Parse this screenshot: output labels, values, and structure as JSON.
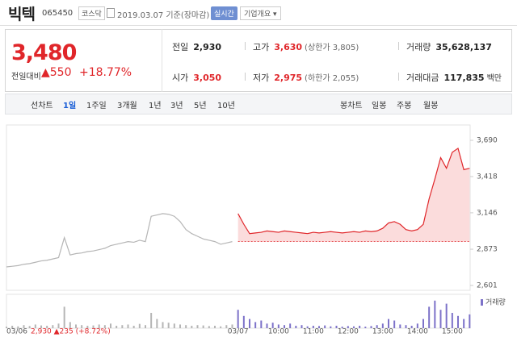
{
  "header": {
    "name": "빅텍",
    "code": "065450",
    "market": "코스닥",
    "date": "2019.03.07 기준(장마감)",
    "realtime": "실시간",
    "company_info": "기업개요"
  },
  "quote": {
    "price": "3,480",
    "change_label": "전일대비",
    "change": "▲550",
    "change_pct": "+18.77%",
    "stats": [
      {
        "label": "전일",
        "value": "2,930",
        "color": "#222222"
      },
      {
        "label": "고가",
        "value": "3,630",
        "note": "(상한가 3,805)",
        "color": "#e0262a"
      },
      {
        "label": "거래량",
        "value": "35,628,137",
        "color": "#222222"
      },
      {
        "label": "시가",
        "value": "3,050",
        "color": "#e0262a"
      },
      {
        "label": "저가",
        "value": "2,975",
        "note": "(하한가 2,055)",
        "color": "#e0262a"
      },
      {
        "label": "거래대금",
        "value": "117,835",
        "unit": "백만",
        "color": "#222222"
      }
    ]
  },
  "tabs": {
    "line_chart": "선차트",
    "periods": [
      "1일",
      "1주일",
      "3개월",
      "1년",
      "3년",
      "5년",
      "10년"
    ],
    "selected": 0,
    "candle_chart": "봉차트",
    "candle_periods": [
      "일봉",
      "주봉",
      "월봉"
    ]
  },
  "chart_data": {
    "type": "line",
    "categories": [
      "03/06",
      null,
      null,
      null,
      null,
      null,
      null,
      null,
      null,
      null,
      null,
      null,
      null,
      null,
      null,
      null,
      null,
      null,
      null,
      null,
      null,
      null,
      null,
      null,
      null,
      null,
      null,
      null,
      null,
      null,
      null,
      null,
      null,
      null,
      null,
      null,
      null,
      null,
      null,
      null,
      "03/07",
      null,
      null,
      null,
      null,
      null,
      null,
      "10:00",
      null,
      null,
      null,
      null,
      null,
      "11:00",
      null,
      null,
      null,
      null,
      null,
      "12:00",
      null,
      null,
      null,
      null,
      null,
      "13:00",
      null,
      null,
      null,
      null,
      null,
      "14:00",
      null,
      null,
      null,
      null,
      null,
      "15:00",
      null,
      null,
      null
    ],
    "series": [
      {
        "color": "#b5b5b5",
        "values": [
          2740,
          2745,
          2750,
          2760,
          2765,
          2775,
          2785,
          2790,
          2800,
          2810,
          2960,
          2830,
          2840,
          2845,
          2855,
          2860,
          2870,
          2880,
          2900,
          2910,
          2920,
          2930,
          2925,
          2940,
          2930,
          3120,
          3130,
          3140,
          3135,
          3120,
          3080,
          3020,
          2990,
          2970,
          2950,
          2940,
          2930,
          2910,
          2920,
          2930,
          null,
          null,
          null,
          null,
          null,
          null,
          null,
          null,
          null,
          null,
          null,
          null,
          null,
          null,
          null,
          null,
          null,
          null,
          null,
          null,
          null,
          null,
          null,
          null,
          null,
          null,
          null,
          null,
          null,
          null,
          null,
          null,
          null,
          null,
          null,
          null,
          null,
          null,
          null,
          null,
          null
        ]
      },
      {
        "color": "#e0262a",
        "fill": "#fbdcdc",
        "values": [
          null,
          null,
          null,
          null,
          null,
          null,
          null,
          null,
          null,
          null,
          null,
          null,
          null,
          null,
          null,
          null,
          null,
          null,
          null,
          null,
          null,
          null,
          null,
          null,
          null,
          null,
          null,
          null,
          null,
          null,
          null,
          null,
          null,
          null,
          null,
          null,
          null,
          null,
          null,
          null,
          3140,
          3060,
          2990,
          2995,
          3000,
          3010,
          3005,
          3000,
          3010,
          3005,
          3000,
          2995,
          2990,
          3000,
          2995,
          3000,
          3005,
          3000,
          2995,
          3000,
          3005,
          3000,
          3010,
          3005,
          3010,
          3030,
          3070,
          3080,
          3060,
          3020,
          3010,
          3020,
          3060,
          3250,
          3400,
          3560,
          3480,
          3600,
          3630,
          3470,
          3480
        ]
      }
    ],
    "reference_line": 2930,
    "ylim": [
      2601,
      3690
    ],
    "yticks": [
      {
        "value": 3690,
        "label": "3,690"
      },
      {
        "value": 3418,
        "label": "3,418"
      },
      {
        "value": 3146,
        "label": "3,146"
      },
      {
        "value": 2873,
        "label": "2,873"
      },
      {
        "value": 2601,
        "label": "2,601"
      }
    ],
    "volume": {
      "name": "거래량",
      "color": "#7d72c9",
      "ylim": [
        0,
        100
      ],
      "values": [
        5,
        8,
        6,
        10,
        7,
        12,
        9,
        8,
        10,
        15,
        70,
        20,
        12,
        10,
        8,
        9,
        12,
        10,
        15,
        8,
        10,
        12,
        8,
        14,
        10,
        50,
        30,
        20,
        18,
        15,
        12,
        10,
        8,
        10,
        9,
        7,
        8,
        6,
        10,
        12,
        60,
        40,
        30,
        20,
        25,
        15,
        18,
        12,
        10,
        15,
        8,
        10,
        6,
        8,
        7,
        9,
        6,
        8,
        5,
        7,
        6,
        8,
        5,
        7,
        10,
        15,
        30,
        25,
        12,
        10,
        8,
        15,
        30,
        70,
        90,
        60,
        80,
        50,
        40,
        30,
        45
      ]
    },
    "annotation": "2,930 ▲235 (+8.72%)"
  }
}
